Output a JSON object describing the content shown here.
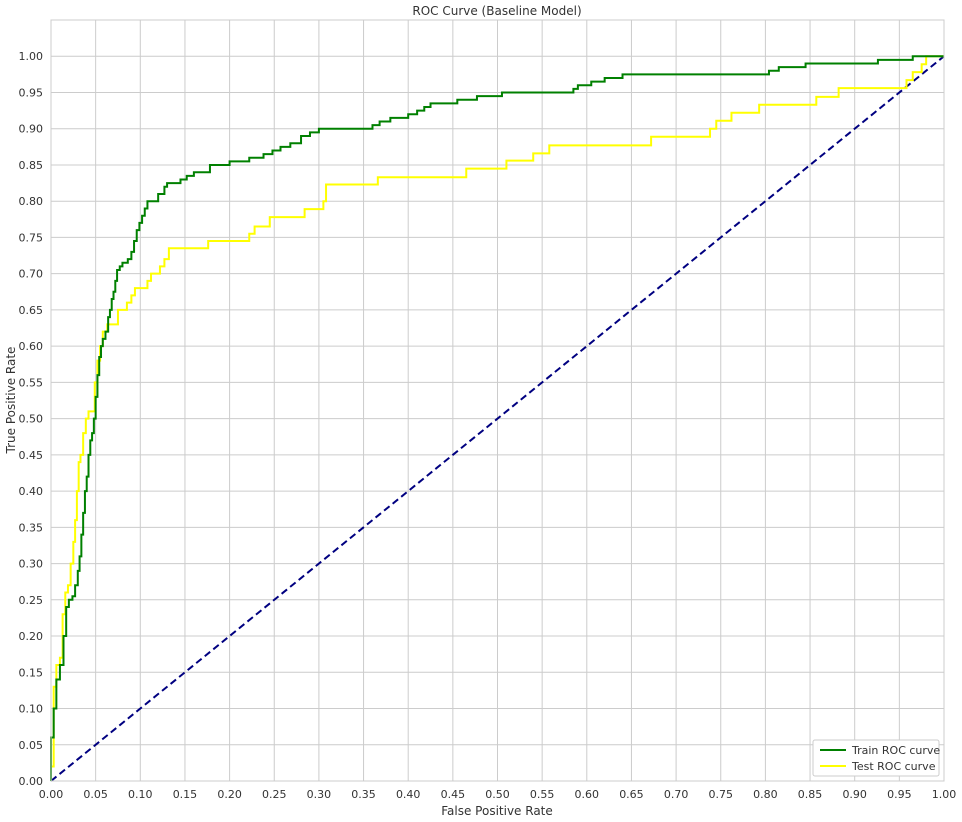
{
  "chart_data": {
    "type": "line",
    "title": "ROC Curve (Baseline Model)",
    "xlabel": "False Positive Rate",
    "ylabel": "True Positive Rate",
    "xlim": [
      0.0,
      1.0
    ],
    "ylim": [
      0.0,
      1.05
    ],
    "x_ticks": [
      "0.00",
      "0.05",
      "0.10",
      "0.15",
      "0.20",
      "0.25",
      "0.30",
      "0.35",
      "0.40",
      "0.45",
      "0.50",
      "0.55",
      "0.60",
      "0.65",
      "0.70",
      "0.75",
      "0.80",
      "0.85",
      "0.90",
      "0.95",
      "1.00"
    ],
    "y_ticks": [
      "0.00",
      "0.05",
      "0.10",
      "0.15",
      "0.20",
      "0.25",
      "0.30",
      "0.35",
      "0.40",
      "0.45",
      "0.50",
      "0.55",
      "0.60",
      "0.65",
      "0.70",
      "0.75",
      "0.80",
      "0.85",
      "0.90",
      "0.95",
      "1.00"
    ],
    "grid": true,
    "legend_position": "bottom-right",
    "series": [
      {
        "name": "Train ROC curve",
        "color": "#008000",
        "style": "solid",
        "step": true,
        "points": [
          [
            0,
            0
          ],
          [
            0,
            0.06
          ],
          [
            0.003,
            0.06
          ],
          [
            0.003,
            0.1
          ],
          [
            0.006,
            0.1
          ],
          [
            0.006,
            0.14
          ],
          [
            0.01,
            0.14
          ],
          [
            0.01,
            0.16
          ],
          [
            0.014,
            0.16
          ],
          [
            0.014,
            0.2
          ],
          [
            0.017,
            0.2
          ],
          [
            0.017,
            0.24
          ],
          [
            0.02,
            0.24
          ],
          [
            0.02,
            0.25
          ],
          [
            0.024,
            0.25
          ],
          [
            0.024,
            0.255
          ],
          [
            0.027,
            0.255
          ],
          [
            0.027,
            0.27
          ],
          [
            0.03,
            0.27
          ],
          [
            0.03,
            0.29
          ],
          [
            0.032,
            0.29
          ],
          [
            0.032,
            0.31
          ],
          [
            0.034,
            0.31
          ],
          [
            0.034,
            0.34
          ],
          [
            0.036,
            0.34
          ],
          [
            0.036,
            0.37
          ],
          [
            0.038,
            0.37
          ],
          [
            0.038,
            0.4
          ],
          [
            0.04,
            0.4
          ],
          [
            0.04,
            0.42
          ],
          [
            0.042,
            0.42
          ],
          [
            0.042,
            0.45
          ],
          [
            0.044,
            0.45
          ],
          [
            0.044,
            0.47
          ],
          [
            0.046,
            0.47
          ],
          [
            0.046,
            0.48
          ],
          [
            0.048,
            0.48
          ],
          [
            0.048,
            0.5
          ],
          [
            0.05,
            0.5
          ],
          [
            0.05,
            0.53
          ],
          [
            0.052,
            0.53
          ],
          [
            0.052,
            0.56
          ],
          [
            0.054,
            0.56
          ],
          [
            0.054,
            0.585
          ],
          [
            0.056,
            0.585
          ],
          [
            0.056,
            0.6
          ],
          [
            0.058,
            0.6
          ],
          [
            0.058,
            0.61
          ],
          [
            0.061,
            0.61
          ],
          [
            0.061,
            0.62
          ],
          [
            0.064,
            0.62
          ],
          [
            0.064,
            0.64
          ],
          [
            0.066,
            0.64
          ],
          [
            0.066,
            0.65
          ],
          [
            0.068,
            0.65
          ],
          [
            0.068,
            0.665
          ],
          [
            0.07,
            0.665
          ],
          [
            0.07,
            0.675
          ],
          [
            0.072,
            0.675
          ],
          [
            0.072,
            0.69
          ],
          [
            0.074,
            0.69
          ],
          [
            0.074,
            0.705
          ],
          [
            0.077,
            0.705
          ],
          [
            0.077,
            0.71
          ],
          [
            0.08,
            0.71
          ],
          [
            0.08,
            0.715
          ],
          [
            0.086,
            0.715
          ],
          [
            0.086,
            0.72
          ],
          [
            0.09,
            0.72
          ],
          [
            0.09,
            0.73
          ],
          [
            0.093,
            0.73
          ],
          [
            0.093,
            0.745
          ],
          [
            0.096,
            0.745
          ],
          [
            0.096,
            0.76
          ],
          [
            0.099,
            0.76
          ],
          [
            0.099,
            0.77
          ],
          [
            0.102,
            0.77
          ],
          [
            0.102,
            0.78
          ],
          [
            0.105,
            0.78
          ],
          [
            0.105,
            0.79
          ],
          [
            0.108,
            0.79
          ],
          [
            0.108,
            0.8
          ],
          [
            0.12,
            0.8
          ],
          [
            0.12,
            0.81
          ],
          [
            0.127,
            0.81
          ],
          [
            0.127,
            0.82
          ],
          [
            0.13,
            0.82
          ],
          [
            0.13,
            0.825
          ],
          [
            0.145,
            0.825
          ],
          [
            0.145,
            0.83
          ],
          [
            0.152,
            0.83
          ],
          [
            0.152,
            0.835
          ],
          [
            0.16,
            0.835
          ],
          [
            0.16,
            0.84
          ],
          [
            0.178,
            0.84
          ],
          [
            0.178,
            0.85
          ],
          [
            0.2,
            0.85
          ],
          [
            0.2,
            0.855
          ],
          [
            0.222,
            0.855
          ],
          [
            0.222,
            0.86
          ],
          [
            0.238,
            0.86
          ],
          [
            0.238,
            0.865
          ],
          [
            0.248,
            0.865
          ],
          [
            0.248,
            0.87
          ],
          [
            0.257,
            0.87
          ],
          [
            0.257,
            0.875
          ],
          [
            0.268,
            0.875
          ],
          [
            0.268,
            0.88
          ],
          [
            0.28,
            0.88
          ],
          [
            0.28,
            0.89
          ],
          [
            0.29,
            0.89
          ],
          [
            0.29,
            0.895
          ],
          [
            0.3,
            0.895
          ],
          [
            0.3,
            0.9
          ],
          [
            0.36,
            0.9
          ],
          [
            0.36,
            0.905
          ],
          [
            0.368,
            0.905
          ],
          [
            0.368,
            0.91
          ],
          [
            0.38,
            0.91
          ],
          [
            0.38,
            0.915
          ],
          [
            0.4,
            0.915
          ],
          [
            0.4,
            0.92
          ],
          [
            0.41,
            0.92
          ],
          [
            0.41,
            0.925
          ],
          [
            0.418,
            0.925
          ],
          [
            0.418,
            0.93
          ],
          [
            0.425,
            0.93
          ],
          [
            0.425,
            0.935
          ],
          [
            0.455,
            0.935
          ],
          [
            0.455,
            0.94
          ],
          [
            0.477,
            0.94
          ],
          [
            0.477,
            0.945
          ],
          [
            0.505,
            0.945
          ],
          [
            0.505,
            0.95
          ],
          [
            0.585,
            0.95
          ],
          [
            0.585,
            0.955
          ],
          [
            0.59,
            0.955
          ],
          [
            0.59,
            0.96
          ],
          [
            0.605,
            0.96
          ],
          [
            0.605,
            0.965
          ],
          [
            0.62,
            0.965
          ],
          [
            0.62,
            0.97
          ],
          [
            0.64,
            0.97
          ],
          [
            0.64,
            0.975
          ],
          [
            0.804,
            0.975
          ],
          [
            0.804,
            0.98
          ],
          [
            0.815,
            0.98
          ],
          [
            0.815,
            0.985
          ],
          [
            0.845,
            0.985
          ],
          [
            0.845,
            0.99
          ],
          [
            0.926,
            0.99
          ],
          [
            0.926,
            0.995
          ],
          [
            0.965,
            0.995
          ],
          [
            0.965,
            1.0
          ],
          [
            1.0,
            1.0
          ]
        ]
      },
      {
        "name": "Test ROC curve",
        "color": "#ffff00",
        "style": "solid",
        "step": true,
        "points": [
          [
            0,
            0
          ],
          [
            0,
            0.02
          ],
          [
            0.003,
            0.02
          ],
          [
            0.003,
            0.13
          ],
          [
            0.006,
            0.13
          ],
          [
            0.006,
            0.16
          ],
          [
            0.01,
            0.16
          ],
          [
            0.01,
            0.17
          ],
          [
            0.013,
            0.17
          ],
          [
            0.013,
            0.23
          ],
          [
            0.016,
            0.23
          ],
          [
            0.016,
            0.26
          ],
          [
            0.019,
            0.26
          ],
          [
            0.019,
            0.27
          ],
          [
            0.022,
            0.27
          ],
          [
            0.022,
            0.3
          ],
          [
            0.025,
            0.3
          ],
          [
            0.025,
            0.33
          ],
          [
            0.027,
            0.33
          ],
          [
            0.027,
            0.36
          ],
          [
            0.029,
            0.36
          ],
          [
            0.029,
            0.4
          ],
          [
            0.031,
            0.4
          ],
          [
            0.031,
            0.44
          ],
          [
            0.033,
            0.44
          ],
          [
            0.033,
            0.45
          ],
          [
            0.036,
            0.45
          ],
          [
            0.036,
            0.48
          ],
          [
            0.039,
            0.48
          ],
          [
            0.039,
            0.5
          ],
          [
            0.042,
            0.5
          ],
          [
            0.042,
            0.51
          ],
          [
            0.049,
            0.51
          ],
          [
            0.049,
            0.55
          ],
          [
            0.052,
            0.55
          ],
          [
            0.052,
            0.58
          ],
          [
            0.055,
            0.58
          ],
          [
            0.055,
            0.6
          ],
          [
            0.058,
            0.6
          ],
          [
            0.058,
            0.62
          ],
          [
            0.063,
            0.62
          ],
          [
            0.063,
            0.63
          ],
          [
            0.075,
            0.63
          ],
          [
            0.075,
            0.65
          ],
          [
            0.085,
            0.65
          ],
          [
            0.085,
            0.66
          ],
          [
            0.09,
            0.66
          ],
          [
            0.09,
            0.67
          ],
          [
            0.094,
            0.67
          ],
          [
            0.094,
            0.68
          ],
          [
            0.108,
            0.68
          ],
          [
            0.108,
            0.69
          ],
          [
            0.112,
            0.69
          ],
          [
            0.112,
            0.7
          ],
          [
            0.122,
            0.7
          ],
          [
            0.122,
            0.71
          ],
          [
            0.127,
            0.71
          ],
          [
            0.127,
            0.72
          ],
          [
            0.132,
            0.72
          ],
          [
            0.132,
            0.735
          ],
          [
            0.176,
            0.735
          ],
          [
            0.176,
            0.745
          ],
          [
            0.222,
            0.745
          ],
          [
            0.222,
            0.755
          ],
          [
            0.228,
            0.755
          ],
          [
            0.228,
            0.765
          ],
          [
            0.245,
            0.765
          ],
          [
            0.245,
            0.778
          ],
          [
            0.284,
            0.778
          ],
          [
            0.284,
            0.789
          ],
          [
            0.305,
            0.789
          ],
          [
            0.305,
            0.8
          ],
          [
            0.308,
            0.8
          ],
          [
            0.308,
            0.823
          ],
          [
            0.366,
            0.823
          ],
          [
            0.366,
            0.833
          ],
          [
            0.465,
            0.833
          ],
          [
            0.465,
            0.845
          ],
          [
            0.51,
            0.845
          ],
          [
            0.51,
            0.856
          ],
          [
            0.54,
            0.856
          ],
          [
            0.54,
            0.866
          ],
          [
            0.558,
            0.866
          ],
          [
            0.558,
            0.877
          ],
          [
            0.672,
            0.877
          ],
          [
            0.672,
            0.889
          ],
          [
            0.738,
            0.889
          ],
          [
            0.738,
            0.9
          ],
          [
            0.745,
            0.9
          ],
          [
            0.745,
            0.911
          ],
          [
            0.762,
            0.911
          ],
          [
            0.762,
            0.922
          ],
          [
            0.793,
            0.922
          ],
          [
            0.793,
            0.933
          ],
          [
            0.857,
            0.933
          ],
          [
            0.857,
            0.944
          ],
          [
            0.882,
            0.944
          ],
          [
            0.882,
            0.956
          ],
          [
            0.958,
            0.956
          ],
          [
            0.958,
            0.967
          ],
          [
            0.965,
            0.967
          ],
          [
            0.965,
            0.978
          ],
          [
            0.975,
            0.978
          ],
          [
            0.975,
            0.989
          ],
          [
            0.98,
            0.989
          ],
          [
            0.98,
            1.0
          ],
          [
            1.0,
            1.0
          ]
        ]
      },
      {
        "name": "",
        "color": "#000080",
        "style": "dashed",
        "step": false,
        "points": [
          [
            0,
            0
          ],
          [
            1,
            1
          ]
        ]
      }
    ],
    "legend_entries": [
      "Train ROC curve",
      "Test ROC curve"
    ]
  }
}
